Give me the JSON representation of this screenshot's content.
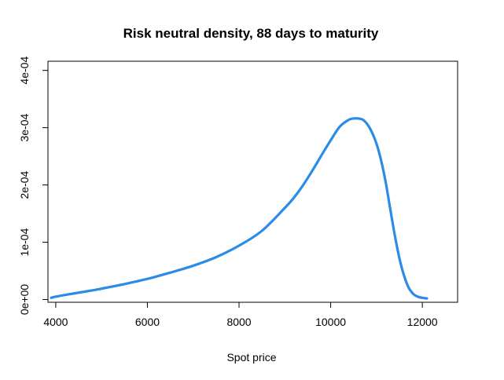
{
  "chart_data": {
    "type": "line",
    "title": "Risk neutral density, 88 days to maturity",
    "xlabel": "Spot price",
    "ylabel": "",
    "xlim": [
      3830,
      12770
    ],
    "ylim": [
      -4.8e-06,
      0.000416
    ],
    "x_ticks": [
      4000,
      6000,
      8000,
      10000,
      12000
    ],
    "x_tick_labels": [
      "4000",
      "6000",
      "8000",
      "10000",
      "12000"
    ],
    "y_ticks": [
      0,
      0.0001,
      0.0002,
      0.0003,
      0.0004
    ],
    "y_tick_labels": [
      "0e+00",
      "1e-04",
      "2e-04",
      "3e-04",
      "4e-04"
    ],
    "grid": false,
    "legend": "none",
    "colors": {
      "series": "#2b8ce6"
    },
    "series": [
      {
        "x": [
          3900,
          4000,
          4200,
          4500,
          4800,
          5000,
          5500,
          6000,
          6500,
          7000,
          7500,
          8000,
          8500,
          9000,
          9200,
          9400,
          9600,
          9800,
          10000,
          10200,
          10400,
          10500,
          10600,
          10700,
          10800,
          10900,
          11000,
          11100,
          11200,
          11300,
          11400,
          11500,
          11600,
          11700,
          11800,
          11900,
          12000,
          12100
        ],
        "values": [
          3e-06,
          5e-06,
          8e-06,
          1.2e-05,
          1.6e-05,
          1.9e-05,
          2.7e-05,
          3.6e-05,
          4.7e-05,
          5.9e-05,
          7.4e-05,
          9.4e-05,
          0.00012,
          0.00016,
          0.000178,
          0.0002,
          0.000225,
          0.000252,
          0.000278,
          0.000302,
          0.000314,
          0.000316,
          0.000316,
          0.000314,
          0.000306,
          0.000292,
          0.000272,
          0.000243,
          0.000205,
          0.000158,
          0.000112,
          7.2e-05,
          4.2e-05,
          2.1e-05,
          1e-05,
          5e-06,
          3e-06,
          2e-06
        ]
      }
    ]
  }
}
